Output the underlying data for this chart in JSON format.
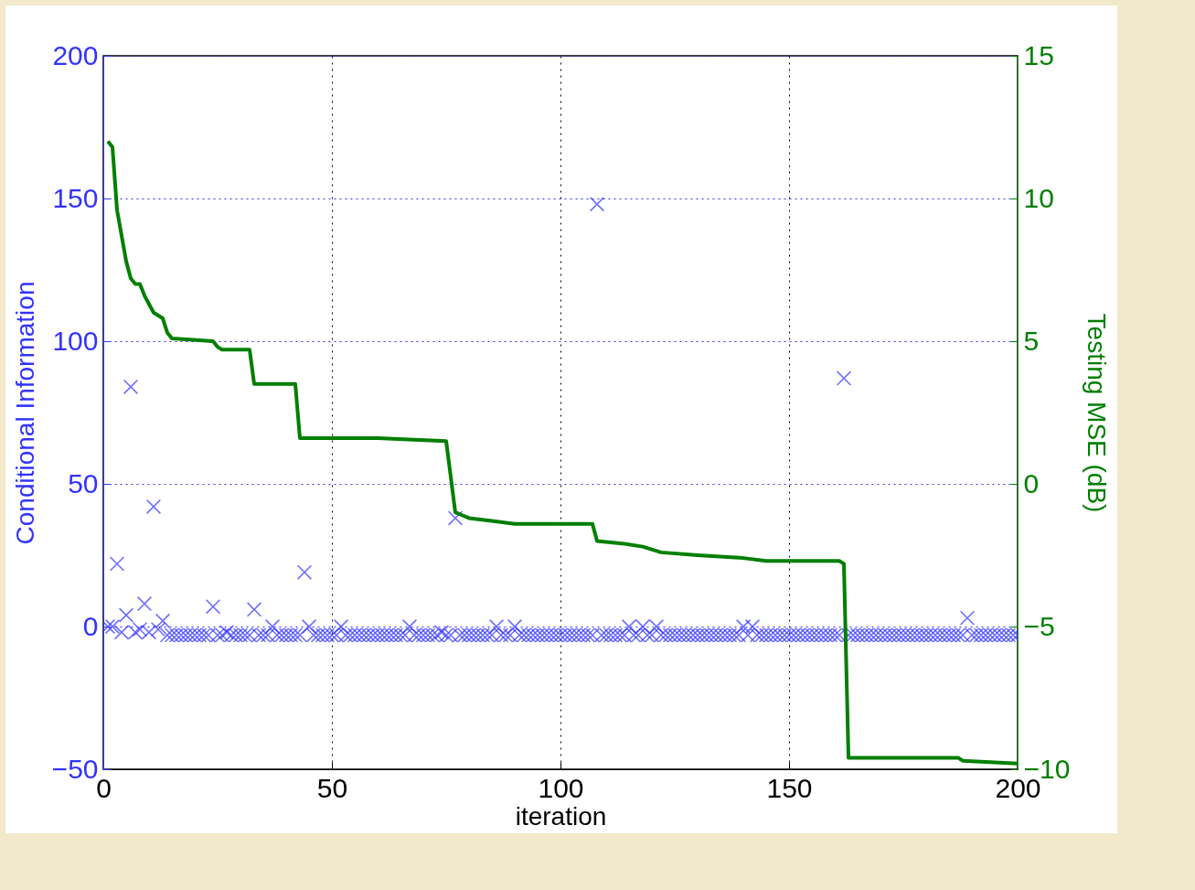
{
  "chart_data": {
    "type": "scatter",
    "xlabel": "iteration",
    "ylabel": "Conditional Information",
    "y2label": "Testing MSE (dB)",
    "xlim": [
      0,
      200
    ],
    "xticks": [
      0,
      50,
      100,
      150,
      200
    ],
    "ylim": [
      -50,
      200
    ],
    "yticks": [
      -50,
      0,
      50,
      100,
      150,
      200
    ],
    "y2lim": [
      -10,
      15
    ],
    "y2ticks": [
      -10,
      -5,
      0,
      5,
      10,
      15
    ],
    "grid": true,
    "marker": "cross",
    "x": [
      1,
      2,
      3,
      4,
      5,
      6,
      7,
      8,
      9,
      10,
      11,
      12,
      13,
      14,
      15,
      16,
      17,
      18,
      19,
      20,
      21,
      22,
      23,
      24,
      25,
      26,
      27,
      28,
      29,
      30,
      31,
      32,
      33,
      34,
      35,
      36,
      37,
      38,
      39,
      40,
      41,
      42,
      43,
      44,
      45,
      46,
      47,
      48,
      49,
      50,
      51,
      52,
      53,
      54,
      55,
      56,
      57,
      58,
      59,
      60,
      61,
      62,
      63,
      64,
      65,
      66,
      67,
      68,
      69,
      70,
      71,
      72,
      73,
      74,
      75,
      76,
      77,
      78,
      79,
      80,
      81,
      82,
      83,
      84,
      85,
      86,
      87,
      88,
      89,
      90,
      91,
      92,
      93,
      94,
      95,
      96,
      97,
      98,
      99,
      100,
      101,
      102,
      103,
      104,
      105,
      106,
      107,
      108,
      109,
      110,
      111,
      112,
      113,
      114,
      115,
      116,
      117,
      118,
      119,
      120,
      121,
      122,
      123,
      124,
      125,
      126,
      127,
      128,
      129,
      130,
      131,
      132,
      133,
      134,
      135,
      136,
      137,
      138,
      139,
      140,
      141,
      142,
      143,
      144,
      145,
      146,
      147,
      148,
      149,
      150,
      151,
      152,
      153,
      154,
      155,
      156,
      157,
      158,
      159,
      160,
      161,
      162,
      163,
      164,
      165,
      166,
      167,
      168,
      169,
      170,
      171,
      172,
      173,
      174,
      175,
      176,
      177,
      178,
      179,
      180,
      181,
      182,
      183,
      184,
      185,
      186,
      187,
      188,
      189,
      190,
      191,
      192,
      193,
      194,
      195,
      196,
      197,
      198,
      199,
      200
    ],
    "series": [
      {
        "color": "#3333ff",
        "values": [
          0,
          0,
          22,
          -2,
          4,
          84,
          -2,
          -1,
          8,
          -2,
          42,
          -1,
          2,
          -3,
          -3,
          -3,
          -3,
          -3,
          -3,
          -3,
          -3,
          -3,
          -3,
          7,
          -3,
          -3,
          -2,
          -3,
          -3,
          -3,
          -3,
          -3,
          6,
          -3,
          -3,
          -3,
          0,
          -3,
          -3,
          -3,
          -3,
          -3,
          -3,
          19,
          0,
          -3,
          -3,
          -3,
          -3,
          -3,
          -3,
          0,
          -3,
          -3,
          -3,
          -3,
          -3,
          -3,
          -3,
          -3,
          -3,
          -3,
          -3,
          -3,
          -3,
          -3,
          0,
          -3,
          -3,
          -3,
          -3,
          -3,
          -3,
          -2,
          -3,
          -3,
          38,
          -3,
          -3,
          -3,
          -3,
          -3,
          -3,
          -3,
          -3,
          0,
          -3,
          -3,
          -3,
          0,
          -3,
          -3,
          -3,
          -3,
          -3,
          -3,
          -3,
          -3,
          -3,
          -3,
          -3,
          -3,
          -3,
          -3,
          -3,
          -3,
          -3,
          148,
          -3,
          -3,
          -3,
          -3,
          -3,
          -3,
          0,
          -3,
          -3,
          0,
          -3,
          -3,
          0,
          -3,
          -3,
          -3,
          -3,
          -3,
          -3,
          -3,
          -3,
          -3,
          -3,
          -3,
          -3,
          -3,
          -3,
          -3,
          -3,
          -3,
          -3,
          0,
          -3,
          0,
          -3,
          -3,
          -3,
          -3,
          -3,
          -3,
          -3,
          -3,
          -3,
          -3,
          -3,
          -3,
          -3,
          -3,
          -3,
          -3,
          -3,
          -3,
          -3,
          87,
          -3,
          -3,
          -3,
          -3,
          -3,
          -3,
          -3,
          -3,
          -3,
          -3,
          -3,
          -3,
          -3,
          -3,
          -3,
          -3,
          -3,
          -3,
          -3,
          -3,
          -3,
          -3,
          -3,
          -3,
          -3,
          -3,
          3,
          -3,
          -3,
          -3,
          -3,
          -3,
          -3,
          -3,
          -3,
          -3,
          -3,
          -3
        ]
      },
      {
        "type": "line",
        "axis": "y2",
        "color": "#007f00",
        "marker": "none",
        "x": [
          1,
          2,
          3,
          5,
          6,
          7,
          8,
          9,
          10,
          11,
          13,
          14,
          15,
          24,
          25,
          26,
          32,
          33,
          42,
          43,
          60,
          75,
          77,
          80,
          85,
          90,
          107,
          108,
          114,
          118,
          122,
          130,
          140,
          145,
          161,
          162,
          163,
          187,
          188,
          200
        ],
        "values": [
          12,
          11.8,
          9.6,
          7.8,
          7.2,
          7,
          7,
          6.6,
          6.3,
          6,
          5.8,
          5.3,
          5.1,
          5,
          4.8,
          4.7,
          4.7,
          3.5,
          3.5,
          1.6,
          1.6,
          1.5,
          -1,
          -1.2,
          -1.3,
          -1.4,
          -1.4,
          -2,
          -2.1,
          -2.2,
          -2.4,
          -2.5,
          -2.6,
          -2.7,
          -2.7,
          -2.8,
          -9.6,
          -9.6,
          -9.7,
          -9.8
        ]
      }
    ]
  }
}
